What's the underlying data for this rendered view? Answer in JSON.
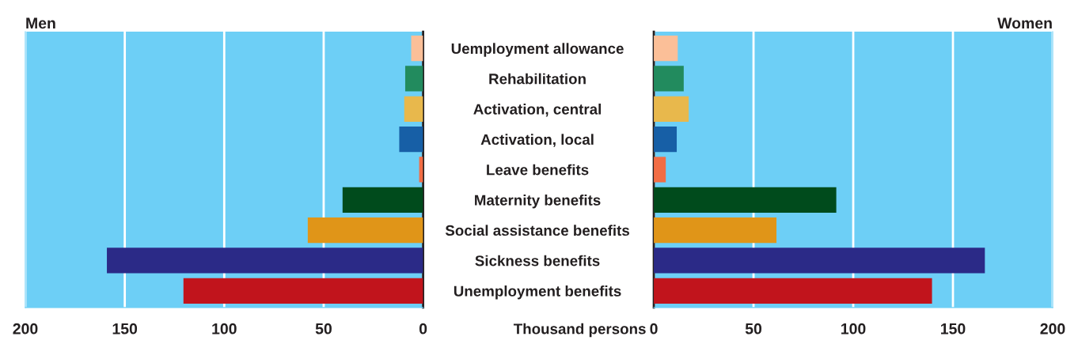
{
  "chart_data": [
    {
      "type": "bar",
      "orientation": "horizontal",
      "title": "Men",
      "xlabel": "Thousand persons",
      "categories": [
        "Uemployment allowance",
        "Rehabilitation",
        "Activation, central",
        "Activation, local",
        "Leave benefits",
        "Maternity benefits",
        "Social assistance benefits",
        "Sickness benefits",
        "Unemployment benefits"
      ],
      "values": [
        6,
        9,
        9.5,
        12,
        2,
        40.5,
        58,
        159,
        120.5
      ],
      "colors": [
        "#fbbf98",
        "#228b5e",
        "#e8b84c",
        "#175fa6",
        "#f26d45",
        "#004b1c",
        "#e09518",
        "#2b2a87",
        "#c1141c"
      ],
      "xlim": [
        200,
        0
      ],
      "xticks": [
        200,
        150,
        100,
        50,
        0
      ],
      "grid": "x",
      "legend": false
    },
    {
      "type": "bar",
      "orientation": "horizontal",
      "title": "Women",
      "values": [
        12,
        15,
        17.5,
        11.5,
        6,
        91.5,
        61.5,
        166,
        139.5
      ],
      "colors": [
        "#fbbf98",
        "#228b5e",
        "#e8b84c",
        "#175fa6",
        "#f26d45",
        "#004b1c",
        "#e09518",
        "#2b2a87",
        "#c1141c"
      ],
      "xlim": [
        0,
        200
      ],
      "xticks": [
        0,
        50,
        100,
        150,
        200
      ],
      "grid": "x",
      "legend": false,
      "tick_labels": "x"
    }
  ]
}
